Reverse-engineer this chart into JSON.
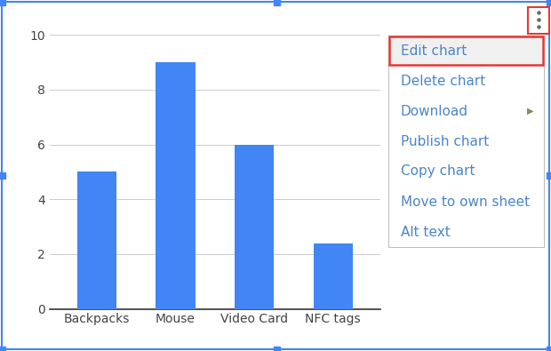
{
  "categories": [
    "Backpacks",
    "Mouse",
    "Video Card",
    "NFC tags"
  ],
  "values": [
    5,
    9,
    6,
    2.4
  ],
  "bar_color": "#4285f4",
  "ylim": [
    0,
    10.5
  ],
  "yticks": [
    0,
    2,
    4,
    6,
    8,
    10
  ],
  "background_color": "#ffffff",
  "chart_area_color": "#ffffff",
  "border_color": "#4285f4",
  "grid_color": "#cccccc",
  "tick_label_color": "#444444",
  "tick_label_fontsize": 10,
  "context_menu_items": [
    "Edit chart",
    "Delete chart",
    "Download",
    "Publish chart",
    "Copy chart",
    "Move to own sheet",
    "Alt text"
  ],
  "menu_text_color": "#4a86c8",
  "menu_fontsize": 11,
  "three_dot_color": "#666666"
}
